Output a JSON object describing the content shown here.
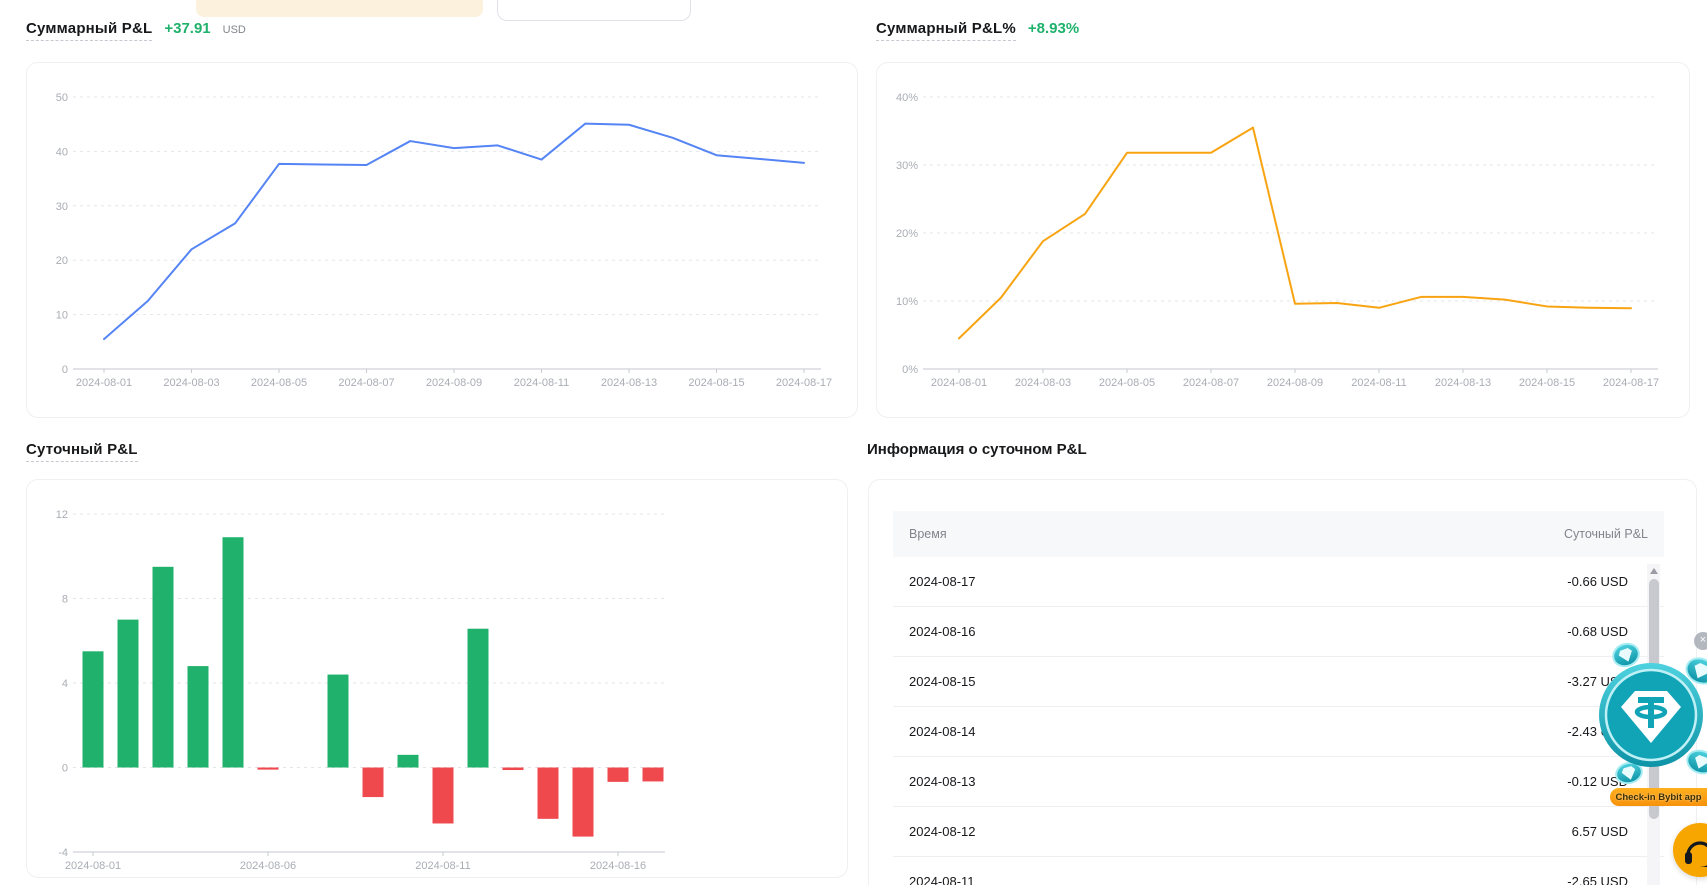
{
  "colors": {
    "green": "#20b26c",
    "red": "#ef484d",
    "blue": "#5584f5",
    "orange": "#f8a412",
    "muted_text": "#81858c",
    "axis_label": "#a9adb4",
    "promo_teal": "#11a3b6",
    "promo_orange": "#f7a600"
  },
  "summary_pnl": {
    "title": "Суммарный P&L",
    "value": "+37.91",
    "unit": "USD"
  },
  "summary_pnl_pct": {
    "title": "Суммарный P&L%",
    "value": "+8.93%"
  },
  "daily_pnl_section": {
    "title": "Суточный P&L"
  },
  "daily_pnl_info": {
    "title": "Информация о суточном P&L",
    "columns": {
      "time": "Время",
      "pnl": "Суточный P&L"
    },
    "rows": [
      {
        "date": "2024-08-17",
        "pnl": "-0.66 USD"
      },
      {
        "date": "2024-08-16",
        "pnl": "-0.68 USD"
      },
      {
        "date": "2024-08-15",
        "pnl": "-3.27 USD"
      },
      {
        "date": "2024-08-14",
        "pnl": "-2.43 USD"
      },
      {
        "date": "2024-08-13",
        "pnl": "-0.12 USD"
      },
      {
        "date": "2024-08-12",
        "pnl": "6.57 USD"
      },
      {
        "date": "2024-08-11",
        "pnl": "-2.65 USD"
      }
    ]
  },
  "promo": {
    "checkin_label": "Check-in Bybit app",
    "close_label": "×"
  },
  "chart_data": [
    {
      "id": "summary_pnl_usd",
      "type": "line",
      "title": "Суммарный P&L (USD)",
      "x": [
        "2024-08-01",
        "2024-08-02",
        "2024-08-03",
        "2024-08-04",
        "2024-08-05",
        "2024-08-06",
        "2024-08-07",
        "2024-08-08",
        "2024-08-09",
        "2024-08-10",
        "2024-08-11",
        "2024-08-12",
        "2024-08-13",
        "2024-08-14",
        "2024-08-15",
        "2024-08-16",
        "2024-08-17"
      ],
      "values": [
        5.5,
        12.5,
        22.0,
        26.8,
        37.7,
        37.6,
        37.5,
        41.9,
        40.6,
        41.1,
        38.5,
        45.1,
        44.9,
        42.5,
        39.3,
        38.6,
        37.9
      ],
      "ylim": [
        0,
        50
      ],
      "yticks": [
        0,
        10,
        20,
        30,
        40,
        50
      ],
      "ytick_suffix": "",
      "x_tick_indices": [
        0,
        2,
        4,
        6,
        8,
        10,
        12,
        14,
        16
      ],
      "x_tick_labels": [
        "2024-08-01",
        "2024-08-03",
        "2024-08-05",
        "2024-08-07",
        "2024-08-09",
        "2024-08-11",
        "2024-08-13",
        "2024-08-15",
        "2024-08-17"
      ],
      "grid": "dashed",
      "legend": "none",
      "line_color": "#5584f5"
    },
    {
      "id": "summary_pnl_pct",
      "type": "line",
      "title": "Суммарный P&L%",
      "x": [
        "2024-08-01",
        "2024-08-02",
        "2024-08-03",
        "2024-08-04",
        "2024-08-05",
        "2024-08-06",
        "2024-08-07",
        "2024-08-08",
        "2024-08-09",
        "2024-08-10",
        "2024-08-11",
        "2024-08-12",
        "2024-08-13",
        "2024-08-14",
        "2024-08-15",
        "2024-08-16",
        "2024-08-17"
      ],
      "values": [
        4.5,
        10.5,
        18.8,
        22.8,
        31.8,
        31.8,
        31.8,
        35.5,
        9.6,
        9.7,
        9.0,
        10.6,
        10.6,
        10.2,
        9.2,
        9.0,
        8.93
      ],
      "ylim": [
        0,
        40
      ],
      "yticks": [
        0,
        10,
        20,
        30,
        40
      ],
      "ytick_suffix": "%",
      "x_tick_indices": [
        0,
        2,
        4,
        6,
        8,
        10,
        12,
        14,
        16
      ],
      "x_tick_labels": [
        "2024-08-01",
        "2024-08-03",
        "2024-08-05",
        "2024-08-07",
        "2024-08-09",
        "2024-08-11",
        "2024-08-13",
        "2024-08-15",
        "2024-08-17"
      ],
      "grid": "dashed",
      "legend": "none",
      "line_color": "#f8a412"
    },
    {
      "id": "daily_pnl",
      "type": "bar",
      "title": "Суточный P&L (USD)",
      "x": [
        "2024-08-01",
        "2024-08-02",
        "2024-08-03",
        "2024-08-04",
        "2024-08-05",
        "2024-08-06",
        "2024-08-07",
        "2024-08-08",
        "2024-08-09",
        "2024-08-10",
        "2024-08-11",
        "2024-08-12",
        "2024-08-13",
        "2024-08-14",
        "2024-08-15",
        "2024-08-16",
        "2024-08-17"
      ],
      "values": [
        5.5,
        7.0,
        9.5,
        4.8,
        10.9,
        -0.1,
        0,
        4.4,
        -1.4,
        0.6,
        -2.65,
        6.57,
        -0.12,
        -2.43,
        -3.27,
        -0.68,
        -0.66
      ],
      "ylim": [
        -4,
        12
      ],
      "yticks": [
        -4,
        0,
        4,
        8,
        12
      ],
      "ytick_suffix": "",
      "x_tick_indices": [
        0,
        5,
        10,
        15
      ],
      "x_tick_labels": [
        "2024-08-01",
        "2024-08-06",
        "2024-08-11",
        "2024-08-16"
      ],
      "grid": "dashed",
      "legend": "none",
      "pos_color": "#20b26c",
      "neg_color": "#ef484d"
    }
  ]
}
